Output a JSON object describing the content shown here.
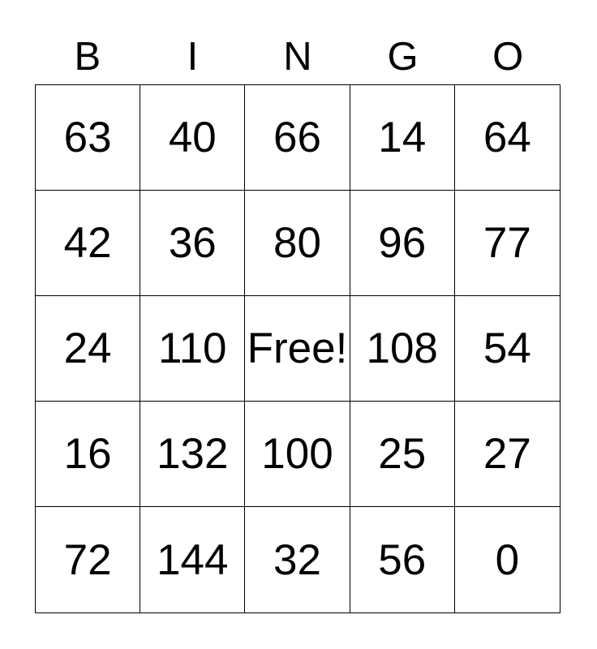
{
  "card": {
    "title_letters": [
      "B",
      "I",
      "N",
      "G",
      "O"
    ],
    "rows": [
      [
        "63",
        "40",
        "66",
        "14",
        "64"
      ],
      [
        "42",
        "36",
        "80",
        "96",
        "77"
      ],
      [
        "24",
        "110",
        "Free!",
        "108",
        "54"
      ],
      [
        "16",
        "132",
        "100",
        "25",
        "27"
      ],
      [
        "72",
        "144",
        "32",
        "56",
        "0"
      ]
    ],
    "free_cell": {
      "row": 2,
      "col": 2,
      "label": "Free!"
    },
    "colors": {
      "background": "#ffffff",
      "text": "#000000",
      "grid_line": "#000000"
    }
  }
}
